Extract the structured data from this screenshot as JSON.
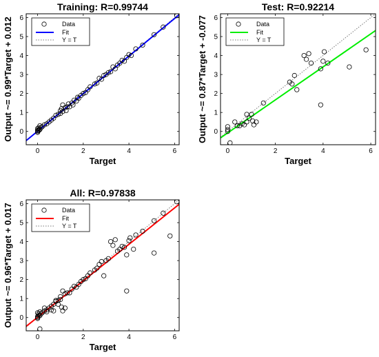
{
  "chart_data": [
    {
      "type": "scatter",
      "title": "Training: R=0.99744",
      "xlabel": "Target",
      "ylabel": "Output ~= 0.99*Target + 0.012",
      "xlim": [
        -0.5,
        6.2
      ],
      "ylim": [
        -0.7,
        6.2
      ],
      "xticks": [
        0,
        2,
        4,
        6
      ],
      "yticks": [
        0,
        1,
        2,
        3,
        4,
        5,
        6
      ],
      "fit": {
        "slope": 0.99,
        "intercept": 0.012,
        "color": "#0000ff"
      },
      "legend": {
        "position": "top-left",
        "entries": [
          "Data",
          "Fit",
          "Y = T"
        ]
      },
      "points": [
        [
          0,
          0
        ],
        [
          0,
          0.05
        ],
        [
          0,
          -0.05
        ],
        [
          0.05,
          0.1
        ],
        [
          0.05,
          0.2
        ],
        [
          0.1,
          0.1
        ],
        [
          0.1,
          0.3
        ],
        [
          0.15,
          0.2
        ],
        [
          0.05,
          0.05
        ],
        [
          0,
          0.15
        ],
        [
          0.2,
          0.25
        ],
        [
          0.3,
          0.35
        ],
        [
          0.4,
          0.4
        ],
        [
          0.5,
          0.5
        ],
        [
          0.6,
          0.6
        ],
        [
          0.7,
          0.7
        ],
        [
          0.8,
          0.85
        ],
        [
          0.9,
          0.9
        ],
        [
          1.0,
          0.95
        ],
        [
          1.0,
          1.1
        ],
        [
          1.05,
          1.2
        ],
        [
          1.1,
          1.05
        ],
        [
          1.1,
          1.4
        ],
        [
          1.2,
          1.25
        ],
        [
          1.25,
          1.1
        ],
        [
          1.3,
          1.3
        ],
        [
          1.35,
          1.45
        ],
        [
          1.4,
          1.3
        ],
        [
          1.5,
          1.5
        ],
        [
          1.55,
          1.4
        ],
        [
          1.6,
          1.65
        ],
        [
          1.7,
          1.6
        ],
        [
          1.75,
          1.8
        ],
        [
          1.8,
          1.75
        ],
        [
          1.9,
          1.9
        ],
        [
          2.0,
          2.0
        ],
        [
          2.1,
          2.05
        ],
        [
          2.2,
          2.2
        ],
        [
          2.3,
          2.35
        ],
        [
          2.5,
          2.5
        ],
        [
          2.6,
          2.55
        ],
        [
          2.7,
          2.8
        ],
        [
          2.8,
          2.75
        ],
        [
          2.9,
          2.95
        ],
        [
          3.0,
          3.0
        ],
        [
          3.1,
          3.1
        ],
        [
          3.2,
          3.15
        ],
        [
          3.3,
          3.4
        ],
        [
          3.4,
          3.3
        ],
        [
          3.5,
          3.5
        ],
        [
          3.6,
          3.6
        ],
        [
          3.7,
          3.75
        ],
        [
          3.8,
          3.7
        ],
        [
          3.9,
          3.9
        ],
        [
          4.0,
          4.05
        ],
        [
          4.1,
          4.0
        ],
        [
          4.3,
          4.35
        ],
        [
          4.6,
          4.55
        ],
        [
          5.1,
          5.1
        ],
        [
          5.5,
          5.5
        ],
        [
          6.1,
          6.1
        ]
      ]
    },
    {
      "type": "scatter",
      "title": "Test: R=0.92214",
      "xlabel": "Target",
      "ylabel": "Output ~= 0.87*Target + -0.077",
      "xlim": [
        -0.3,
        6.2
      ],
      "ylim": [
        -0.7,
        6.2
      ],
      "xticks": [
        0,
        2,
        4,
        6
      ],
      "yticks": [
        0,
        1,
        2,
        3,
        4,
        5,
        6
      ],
      "fit": {
        "slope": 0.87,
        "intercept": -0.077,
        "color": "#00ee00"
      },
      "legend": {
        "position": "top-left",
        "entries": [
          "Data",
          "Fit",
          "Y = T"
        ]
      },
      "points": [
        [
          0,
          0
        ],
        [
          0,
          0.1
        ],
        [
          0,
          0.25
        ],
        [
          0.1,
          -0.6
        ],
        [
          0.3,
          0.5
        ],
        [
          0.4,
          0.3
        ],
        [
          0.5,
          0.3
        ],
        [
          0.6,
          0.4
        ],
        [
          0.7,
          0.35
        ],
        [
          0.8,
          0.9
        ],
        [
          0.8,
          0.5
        ],
        [
          0.9,
          0.7
        ],
        [
          1.0,
          0.9
        ],
        [
          1.05,
          0.55
        ],
        [
          1.1,
          0.35
        ],
        [
          1.2,
          0.5
        ],
        [
          1.5,
          1.5
        ],
        [
          2.6,
          2.6
        ],
        [
          2.7,
          2.5
        ],
        [
          2.8,
          2.95
        ],
        [
          2.9,
          2.2
        ],
        [
          3.2,
          4.0
        ],
        [
          3.3,
          3.8
        ],
        [
          3.4,
          4.1
        ],
        [
          3.5,
          3.6
        ],
        [
          3.9,
          3.3
        ],
        [
          3.9,
          1.4
        ],
        [
          4.0,
          3.7
        ],
        [
          4.05,
          4.2
        ],
        [
          4.2,
          3.6
        ],
        [
          5.1,
          3.4
        ],
        [
          5.8,
          4.3
        ]
      ]
    },
    {
      "type": "scatter",
      "title": "All: R=0.97838",
      "xlabel": "Target",
      "ylabel": "Output ~= 0.96*Target + 0.017",
      "xlim": [
        -0.5,
        6.2
      ],
      "ylim": [
        -0.7,
        6.2
      ],
      "xticks": [
        0,
        2,
        4,
        6
      ],
      "yticks": [
        0,
        1,
        2,
        3,
        4,
        5,
        6
      ],
      "fit": {
        "slope": 0.96,
        "intercept": 0.017,
        "color": "#ff0000"
      },
      "legend": {
        "position": "top-left",
        "entries": [
          "Data",
          "Fit",
          "Y = T"
        ]
      },
      "points": [
        [
          0,
          0
        ],
        [
          0,
          0.05
        ],
        [
          0,
          -0.05
        ],
        [
          0.05,
          0.1
        ],
        [
          0.05,
          0.2
        ],
        [
          0.1,
          0.1
        ],
        [
          0.1,
          0.3
        ],
        [
          0.15,
          0.2
        ],
        [
          0,
          0.25
        ],
        [
          0.1,
          -0.6
        ],
        [
          0.2,
          0.25
        ],
        [
          0.3,
          0.35
        ],
        [
          0.3,
          0.5
        ],
        [
          0.4,
          0.4
        ],
        [
          0.4,
          0.3
        ],
        [
          0.5,
          0.5
        ],
        [
          0.6,
          0.6
        ],
        [
          0.6,
          0.4
        ],
        [
          0.7,
          0.7
        ],
        [
          0.7,
          0.35
        ],
        [
          0.8,
          0.85
        ],
        [
          0.8,
          0.9
        ],
        [
          0.9,
          0.9
        ],
        [
          0.9,
          0.7
        ],
        [
          1.0,
          0.95
        ],
        [
          1.0,
          1.1
        ],
        [
          1.05,
          0.55
        ],
        [
          1.1,
          1.4
        ],
        [
          1.1,
          0.35
        ],
        [
          1.2,
          1.25
        ],
        [
          1.2,
          0.5
        ],
        [
          1.3,
          1.3
        ],
        [
          1.4,
          1.3
        ],
        [
          1.5,
          1.5
        ],
        [
          1.6,
          1.65
        ],
        [
          1.7,
          1.6
        ],
        [
          1.8,
          1.75
        ],
        [
          1.9,
          1.9
        ],
        [
          2.0,
          2.0
        ],
        [
          2.1,
          2.05
        ],
        [
          2.2,
          2.2
        ],
        [
          2.3,
          2.35
        ],
        [
          2.5,
          2.5
        ],
        [
          2.6,
          2.6
        ],
        [
          2.7,
          2.8
        ],
        [
          2.8,
          2.95
        ],
        [
          2.9,
          2.2
        ],
        [
          3.0,
          3.0
        ],
        [
          3.1,
          3.1
        ],
        [
          3.2,
          4.0
        ],
        [
          3.3,
          3.8
        ],
        [
          3.4,
          4.1
        ],
        [
          3.5,
          3.5
        ],
        [
          3.6,
          3.6
        ],
        [
          3.7,
          3.75
        ],
        [
          3.8,
          3.7
        ],
        [
          3.9,
          3.3
        ],
        [
          3.9,
          1.4
        ],
        [
          4.0,
          4.05
        ],
        [
          4.05,
          4.2
        ],
        [
          4.2,
          3.6
        ],
        [
          4.3,
          4.35
        ],
        [
          4.6,
          4.55
        ],
        [
          5.1,
          5.1
        ],
        [
          5.1,
          3.4
        ],
        [
          5.5,
          5.5
        ],
        [
          5.8,
          4.3
        ],
        [
          6.1,
          6.1
        ]
      ]
    }
  ]
}
